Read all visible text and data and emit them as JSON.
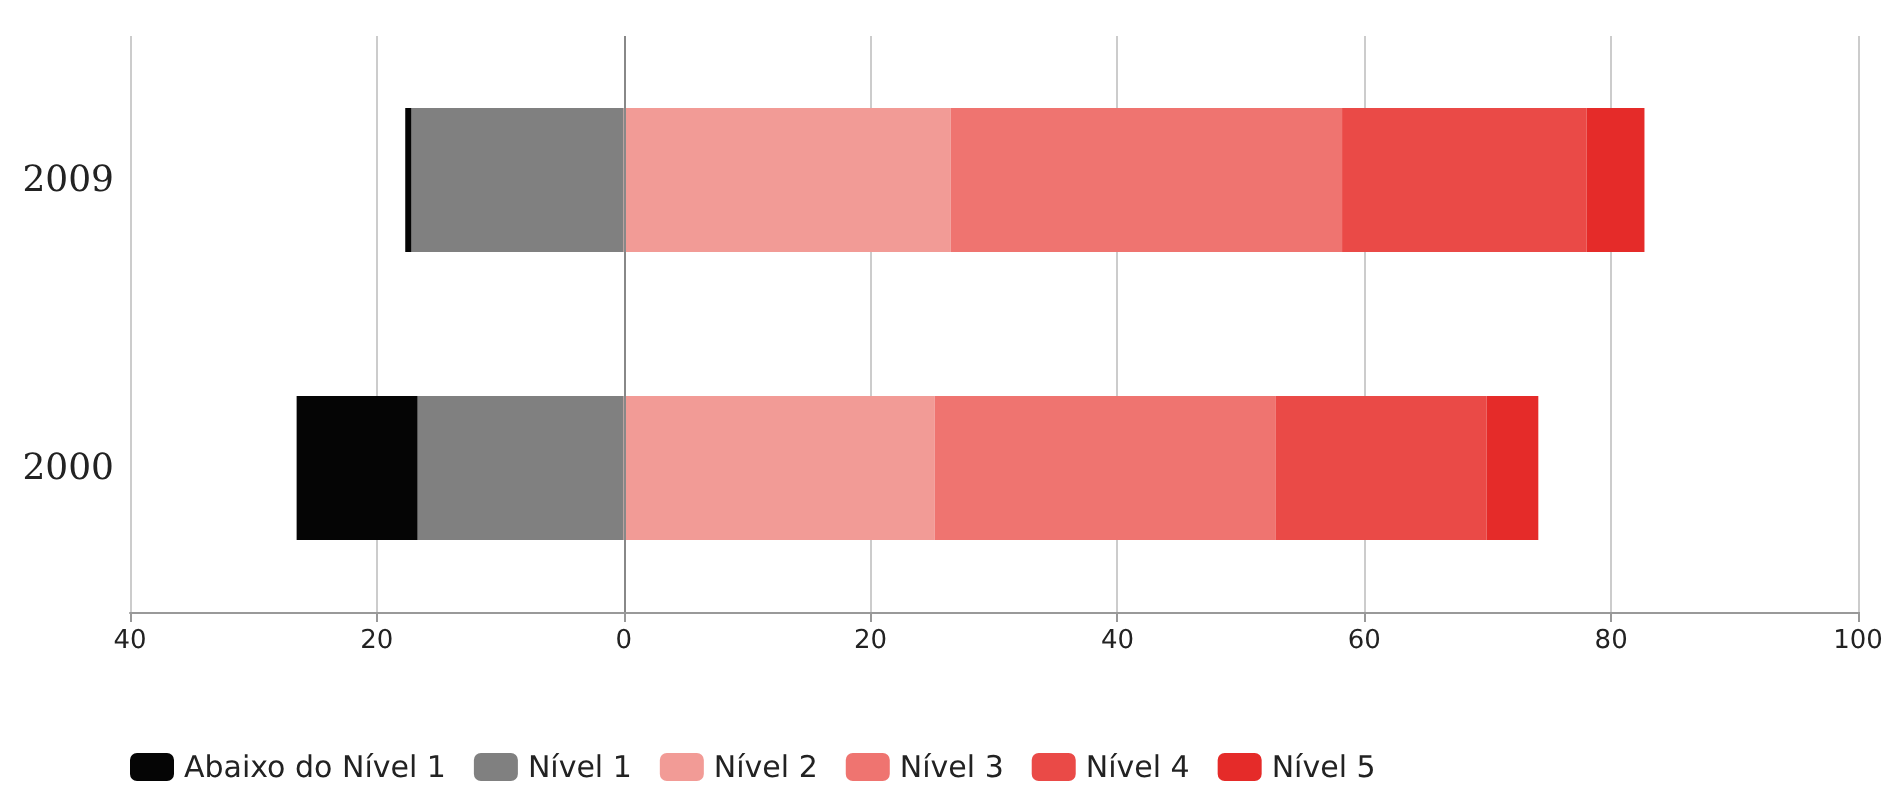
{
  "chart_data": {
    "type": "bar",
    "orientation": "horizontal",
    "stacked": true,
    "categories": [
      "2009",
      "2000"
    ],
    "series": [
      {
        "name": "Nível 1",
        "color": "#808080",
        "values": [
          -17.2,
          -16.7
        ]
      },
      {
        "name": "Abaixo do Nível 1",
        "color": "#050505",
        "values": [
          -0.5,
          -9.8
        ]
      },
      {
        "name": "Nível 2",
        "color": "#f29b96",
        "values": [
          26.5,
          25.2
        ]
      },
      {
        "name": "Nível 3",
        "color": "#ef7470",
        "values": [
          31.7,
          27.6
        ]
      },
      {
        "name": "Nível 4",
        "color": "#ea4a47",
        "values": [
          19.8,
          17.1
        ]
      },
      {
        "name": "Nível 5",
        "color": "#e52b29",
        "values": [
          4.7,
          4.2
        ]
      }
    ],
    "xlim": [
      -40,
      100
    ],
    "xticks": [
      {
        "value": -40,
        "label": "40"
      },
      {
        "value": -20,
        "label": "20"
      },
      0,
      20,
      40,
      60,
      80,
      100
    ],
    "grid": "x",
    "legend": "bottom left"
  }
}
